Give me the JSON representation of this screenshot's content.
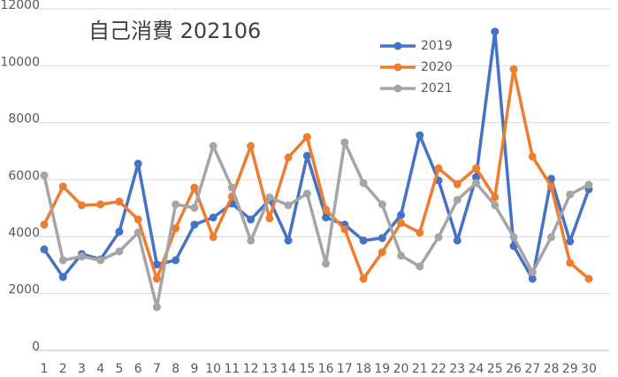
{
  "chart_data": {
    "type": "line",
    "title": "自己消費 202106",
    "categories": [
      1,
      2,
      3,
      4,
      5,
      6,
      7,
      8,
      9,
      10,
      11,
      12,
      13,
      14,
      15,
      16,
      17,
      18,
      19,
      20,
      21,
      22,
      23,
      24,
      25,
      26,
      27,
      28,
      29,
      30
    ],
    "series": [
      {
        "name": "2019",
        "color": "#4472c4",
        "values": [
          3550,
          2580,
          3390,
          3200,
          4170,
          6560,
          3020,
          3170,
          4420,
          4670,
          5160,
          4600,
          5290,
          3860,
          6840,
          4670,
          4420,
          3860,
          3950,
          4760,
          7560,
          5970,
          3860,
          6090,
          11200,
          3670,
          2520,
          6030,
          3830,
          5660
        ]
      },
      {
        "name": "2020",
        "color": "#ed7d31",
        "values": [
          4420,
          5760,
          5100,
          5130,
          5230,
          4600,
          2520,
          4290,
          5720,
          3980,
          5410,
          7180,
          4640,
          6780,
          7500,
          4950,
          4260,
          2520,
          3450,
          4480,
          4140,
          6400,
          5840,
          6400,
          5380,
          9880,
          6810,
          5760,
          3080,
          2520
        ]
      },
      {
        "name": "2021",
        "color": "#a5a5a5",
        "values": [
          6150,
          3170,
          3300,
          3170,
          3480,
          4140,
          1520,
          5130,
          5010,
          7180,
          5720,
          3860,
          5380,
          5100,
          5510,
          3050,
          7310,
          5880,
          5130,
          3330,
          2950,
          3980,
          5290,
          5880,
          5100,
          3980,
          2740,
          3980,
          5480,
          5820
        ]
      }
    ],
    "ylim": [
      0,
      12000
    ],
    "yticks": [
      0,
      2000,
      4000,
      6000,
      8000,
      10000,
      12000
    ],
    "grid": true,
    "legend": "top-right"
  }
}
